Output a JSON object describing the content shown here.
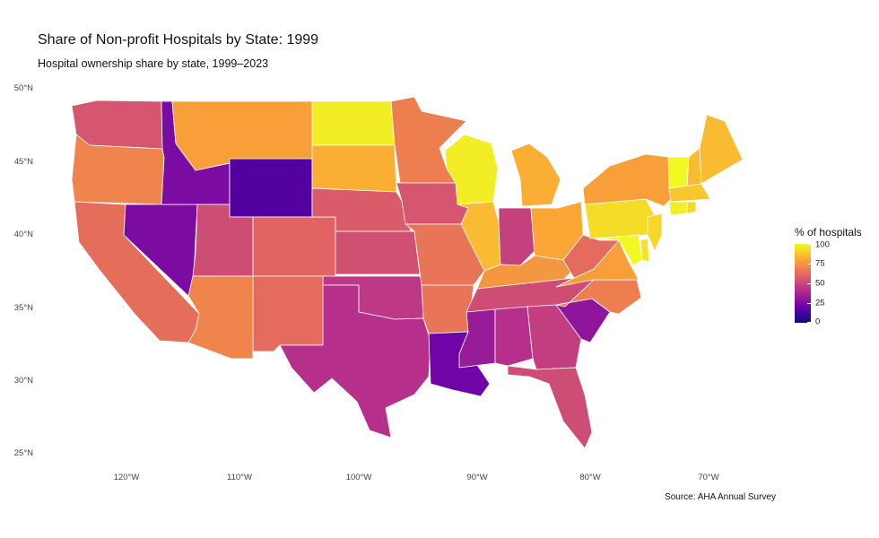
{
  "title": "Share of Non-profit Hospitals by State: 1999",
  "subtitle": "Hospital ownership share by state, 1999–2023",
  "caption": "Source: AHA Annual Survey",
  "legend": {
    "title": "% of hospitals",
    "ticks": [
      "100",
      "75",
      "50",
      "25",
      "0"
    ],
    "colors": [
      "#0d0887",
      "#6a00a8",
      "#b12a90",
      "#e16462",
      "#fca636",
      "#f0f921"
    ]
  },
  "axes": {
    "lat_labels": [
      "50°N",
      "45°N",
      "40°N",
      "35°N",
      "30°N",
      "25°N"
    ],
    "lon_labels": [
      "120°W",
      "110°W",
      "100°W",
      "90°W",
      "80°W",
      "70°W"
    ]
  },
  "chart_data": {
    "type": "choropleth",
    "title": "Share of Non-profit Hospitals by State: 1999",
    "subtitle": "Hospital ownership share by state, 1999–2023",
    "legend_title": "% of hospitals",
    "scale": {
      "min": 0,
      "max": 100,
      "palette": "plasma"
    },
    "legend_position": "right",
    "grid": false,
    "x_range": [
      -125,
      -66
    ],
    "y_range": [
      25,
      49
    ],
    "values": {
      "WA": 55,
      "OR": 70,
      "CA": 63,
      "NV": 25,
      "ID": 25,
      "MT": 78,
      "WY": 15,
      "UT": 52,
      "AZ": 70,
      "CO": 60,
      "NM": 62,
      "ND": 97,
      "SD": 82,
      "NE": 57,
      "KS": 53,
      "OK": 45,
      "TX": 42,
      "MN": 68,
      "IA": 55,
      "MO": 65,
      "AR": 65,
      "LA": 22,
      "WI": 97,
      "IL": 85,
      "MI": 82,
      "IN": 48,
      "OH": 80,
      "KY": 75,
      "TN": 52,
      "MS": 33,
      "AL": 42,
      "GA": 47,
      "FL": 52,
      "SC": 30,
      "NC": 68,
      "VA": 78,
      "WV": 62,
      "PA": 93,
      "NY": 78,
      "VT": 100,
      "NH": 85,
      "ME": 85,
      "MA": 88,
      "CT": 97,
      "RI": 92,
      "NJ": 92,
      "DE": 95,
      "MD": 100
    }
  }
}
